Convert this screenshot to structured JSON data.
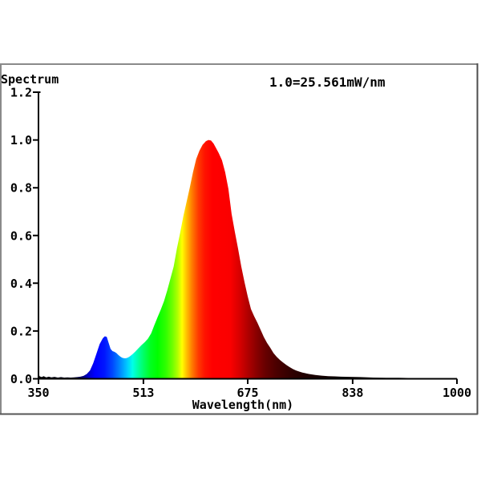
{
  "window": {
    "background": "#ffffff",
    "panel_border": {
      "top_color": "#8a8a8a",
      "left_color": "#8a8a8a",
      "right_color": "#4d4d4d",
      "bottom_color": "#565656"
    }
  },
  "chart_data": {
    "type": "area",
    "title": "Spectrum",
    "annotation": "1.0=25.561mW/nm",
    "xlabel": "Wavelength(nm)",
    "ylabel": "",
    "axis_color": "#000000",
    "text_color": "#000000",
    "grid": false,
    "legend": false,
    "x_axis": {
      "min": 350,
      "max": 1000,
      "ticks": [
        350,
        513,
        675,
        838,
        1000
      ],
      "tick_labels": [
        "350",
        "513",
        "675",
        "838",
        "1000"
      ]
    },
    "y_axis": {
      "min": 0.0,
      "max": 1.2,
      "ticks": [
        0.0,
        0.2,
        0.4,
        0.6,
        0.8,
        1.0,
        1.2
      ],
      "tick_labels": [
        "0.0",
        "0.2",
        "0.4",
        "0.6",
        "0.8",
        "1.0",
        "1.2"
      ]
    },
    "peak": {
      "wavelength_nm": 614,
      "value": 1.0
    },
    "blue_peak": {
      "wavelength_nm": 454,
      "value": 0.18
    },
    "dip": {
      "wavelength_nm": 483,
      "value": 0.086
    },
    "series": [
      {
        "name": "spectral-power-distribution",
        "points": [
          [
            350,
            0.02
          ],
          [
            352,
            0.01
          ],
          [
            355,
            0.007
          ],
          [
            358,
            0.011
          ],
          [
            362,
            0.006
          ],
          [
            366,
            0.009
          ],
          [
            370,
            0.006
          ],
          [
            375,
            0.008
          ],
          [
            380,
            0.005
          ],
          [
            385,
            0.007
          ],
          [
            390,
            0.005
          ],
          [
            395,
            0.006
          ],
          [
            400,
            0.005
          ],
          [
            405,
            0.006
          ],
          [
            410,
            0.007
          ],
          [
            415,
            0.009
          ],
          [
            420,
            0.012
          ],
          [
            425,
            0.02
          ],
          [
            430,
            0.035
          ],
          [
            435,
            0.065
          ],
          [
            440,
            0.105
          ],
          [
            445,
            0.145
          ],
          [
            450,
            0.17
          ],
          [
            453,
            0.178
          ],
          [
            456,
            0.176
          ],
          [
            459,
            0.15
          ],
          [
            462,
            0.125
          ],
          [
            465,
            0.116
          ],
          [
            468,
            0.113
          ],
          [
            471,
            0.108
          ],
          [
            474,
            0.1
          ],
          [
            477,
            0.093
          ],
          [
            480,
            0.088
          ],
          [
            483,
            0.086
          ],
          [
            486,
            0.086
          ],
          [
            489,
            0.089
          ],
          [
            492,
            0.094
          ],
          [
            496,
            0.103
          ],
          [
            500,
            0.113
          ],
          [
            505,
            0.127
          ],
          [
            510,
            0.141
          ],
          [
            515,
            0.153
          ],
          [
            520,
            0.168
          ],
          [
            525,
            0.19
          ],
          [
            530,
            0.225
          ],
          [
            535,
            0.258
          ],
          [
            540,
            0.29
          ],
          [
            545,
            0.325
          ],
          [
            550,
            0.37
          ],
          [
            555,
            0.42
          ],
          [
            560,
            0.47
          ],
          [
            565,
            0.545
          ],
          [
            570,
            0.61
          ],
          [
            575,
            0.68
          ],
          [
            580,
            0.74
          ],
          [
            585,
            0.8
          ],
          [
            590,
            0.865
          ],
          [
            595,
            0.92
          ],
          [
            600,
            0.955
          ],
          [
            605,
            0.98
          ],
          [
            610,
            0.995
          ],
          [
            614,
            1.0
          ],
          [
            618,
            0.998
          ],
          [
            622,
            0.985
          ],
          [
            626,
            0.965
          ],
          [
            630,
            0.945
          ],
          [
            635,
            0.915
          ],
          [
            640,
            0.865
          ],
          [
            645,
            0.795
          ],
          [
            650,
            0.69
          ],
          [
            655,
            0.615
          ],
          [
            660,
            0.545
          ],
          [
            665,
            0.47
          ],
          [
            670,
            0.405
          ],
          [
            675,
            0.345
          ],
          [
            680,
            0.292
          ],
          [
            685,
            0.262
          ],
          [
            690,
            0.235
          ],
          [
            695,
            0.205
          ],
          [
            700,
            0.175
          ],
          [
            705,
            0.15
          ],
          [
            710,
            0.13
          ],
          [
            715,
            0.108
          ],
          [
            720,
            0.092
          ],
          [
            725,
            0.079
          ],
          [
            730,
            0.068
          ],
          [
            735,
            0.058
          ],
          [
            740,
            0.049
          ],
          [
            745,
            0.041
          ],
          [
            750,
            0.035
          ],
          [
            755,
            0.03
          ],
          [
            760,
            0.026
          ],
          [
            770,
            0.02
          ],
          [
            780,
            0.016
          ],
          [
            790,
            0.013
          ],
          [
            800,
            0.011
          ],
          [
            810,
            0.01
          ],
          [
            820,
            0.009
          ],
          [
            835,
            0.008
          ],
          [
            850,
            0.007
          ],
          [
            870,
            0.005
          ],
          [
            890,
            0.004
          ],
          [
            910,
            0.004
          ],
          [
            930,
            0.003
          ],
          [
            950,
            0.003
          ],
          [
            975,
            0.002
          ],
          [
            1000,
            0.002
          ]
        ]
      }
    ],
    "spectral_gradient_stops": [
      {
        "nm": 350,
        "color": "#000000"
      },
      {
        "nm": 405,
        "color": "#000020"
      },
      {
        "nm": 418,
        "color": "#000070"
      },
      {
        "nm": 428,
        "color": "#0000cc"
      },
      {
        "nm": 438,
        "color": "#0000ff"
      },
      {
        "nm": 452,
        "color": "#0014ff"
      },
      {
        "nm": 465,
        "color": "#0048ff"
      },
      {
        "nm": 478,
        "color": "#0090ff"
      },
      {
        "nm": 488,
        "color": "#00ccff"
      },
      {
        "nm": 496,
        "color": "#00ffe8"
      },
      {
        "nm": 505,
        "color": "#00ffa0"
      },
      {
        "nm": 514,
        "color": "#00ff60"
      },
      {
        "nm": 524,
        "color": "#00ff20"
      },
      {
        "nm": 535,
        "color": "#00ff00"
      },
      {
        "nm": 548,
        "color": "#30ff00"
      },
      {
        "nm": 558,
        "color": "#70ff00"
      },
      {
        "nm": 566,
        "color": "#b0ff00"
      },
      {
        "nm": 573,
        "color": "#ffff00"
      },
      {
        "nm": 581,
        "color": "#ffb800"
      },
      {
        "nm": 589,
        "color": "#ff7800"
      },
      {
        "nm": 598,
        "color": "#ff3c00"
      },
      {
        "nm": 608,
        "color": "#ff1400"
      },
      {
        "nm": 620,
        "color": "#ff0000"
      },
      {
        "nm": 648,
        "color": "#fa0000"
      },
      {
        "nm": 662,
        "color": "#d80000"
      },
      {
        "nm": 676,
        "color": "#ae0000"
      },
      {
        "nm": 690,
        "color": "#850000"
      },
      {
        "nm": 704,
        "color": "#640000"
      },
      {
        "nm": 720,
        "color": "#4a0000"
      },
      {
        "nm": 740,
        "color": "#330000"
      },
      {
        "nm": 760,
        "color": "#220000"
      },
      {
        "nm": 785,
        "color": "#150000"
      },
      {
        "nm": 815,
        "color": "#0b0000"
      },
      {
        "nm": 860,
        "color": "#040000"
      },
      {
        "nm": 1000,
        "color": "#000000"
      }
    ]
  }
}
